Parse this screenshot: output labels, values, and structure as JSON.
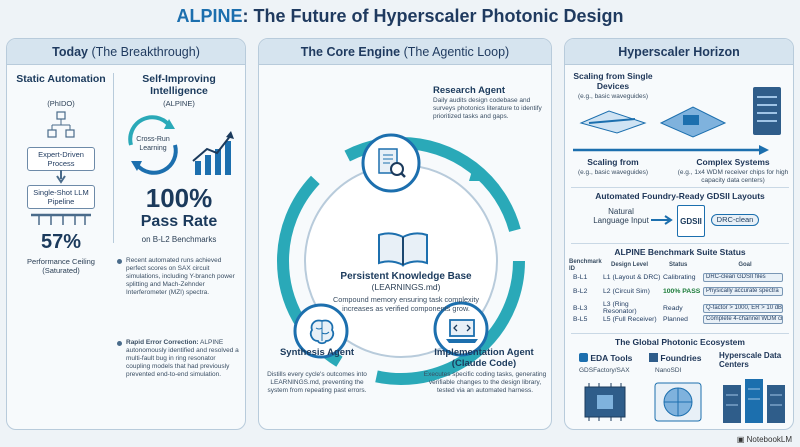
{
  "title": {
    "accent": "ALPINE",
    "rest": ": The Future of Hyperscaler Photonic Design"
  },
  "left": {
    "head_bold": "Today",
    "head_light": " (The Breakthrough)",
    "static_title": "Static Automation",
    "static_sub": "(PhIDO)",
    "expert_box": "Expert-Driven Process",
    "single_box": "Single-Shot LLM Pipeline",
    "ceiling_value": "57%",
    "ceiling_label": "Performance Ceiling (Saturated)",
    "self_title": "Self-Improving Intelligence",
    "self_sub": "(ALPINE)",
    "crossrun": "Cross-Run Learning",
    "pass_value": "100%",
    "pass_label": "Pass Rate",
    "pass_sub": "on B-L2 Benchmarks",
    "bullet1": "Recent automated runs achieved perfect scores on SAX circuit simulations, including Y-branch power splitting and Mach-Zehnder Interferometer (MZI) spectra.",
    "bullet2_bold": "Rapid Error Correction:",
    "bullet2": " ALPINE autonomously identified and resolved a multi-fault bug in ring resonator coupling models that had previously prevented end-to-end simulation."
  },
  "center": {
    "head_bold": "The Core Engine",
    "head_light": " (The Agentic Loop)",
    "research_title": "Research Agent",
    "research_text": "Daily audits design codebase and surveys photonics literature to identify prioritized tasks and gaps.",
    "kb_title": "Persistent Knowledge Base",
    "kb_sub": "(LEARNINGS.md)",
    "kb_text": "Compound memory ensuring task complexity increases as verified components grow.",
    "synth_title": "Synthesis Agent",
    "synth_text": "Distills every cycle's outcomes into LEARNINGS.md, preventing the system from repeating past errors.",
    "impl_title": "Implementation Agent (Claude Code)",
    "impl_text": "Executes specific coding tasks, generating verifiable changes to the design library, tested via an automated harness."
  },
  "right": {
    "head": "Hyperscaler Horizon",
    "scale1_title": "Scaling from Single Devices",
    "scale1_sub": "(e.g., basic waveguides)",
    "scale2_title": "Scaling from",
    "scale2_sub": "(e.g., basic waveguides)",
    "complex_title": "Complex Systems",
    "complex_sub": "(e.g., 1x4 WDM receiver chips for high capacity data centers)",
    "gds_title": "Automated Foundry-Ready GDSII Layouts",
    "nl_input": "Natural Language Input",
    "gdsii": "GDSII",
    "drc": "DRC-clean",
    "bench_title": "ALPINE Benchmark Suite Status",
    "col_id": "Benchmark ID",
    "col_level": "Design Level",
    "col_status": "Status",
    "col_goal": "Goal",
    "rows": [
      {
        "id": "B-L1",
        "level": "L1 (Layout & DRC)",
        "status": "Calibrating",
        "goal": "DRC-clean GDSII files"
      },
      {
        "id": "B-L2",
        "level": "L2 (Circuit Sim)",
        "status": "100% PASS",
        "goal": "Physically accurate spectra"
      },
      {
        "id": "B-L3",
        "level": "L3 (Ring Resonator)",
        "status": "Ready",
        "goal": "Q-factor > 1000, ER > 10 dB"
      },
      {
        "id": "B-L5",
        "level": "L5 (Full Receiver)",
        "status": "Planned",
        "goal": "Complete 4-channel WDM chip"
      }
    ],
    "eco_title": "The Global Photonic Ecosystem",
    "eda": "EDA Tools",
    "eda_sub": "GDSFactory/SAX",
    "foundries": "Foundries",
    "foundries_sub": "NanoSDI",
    "hyper": "Hyperscale Data Centers"
  },
  "footer": "NotebookLM",
  "colors": {
    "accent": "#1c6fae",
    "teal": "#2aa9b8",
    "pass": "#1c7c3a"
  }
}
